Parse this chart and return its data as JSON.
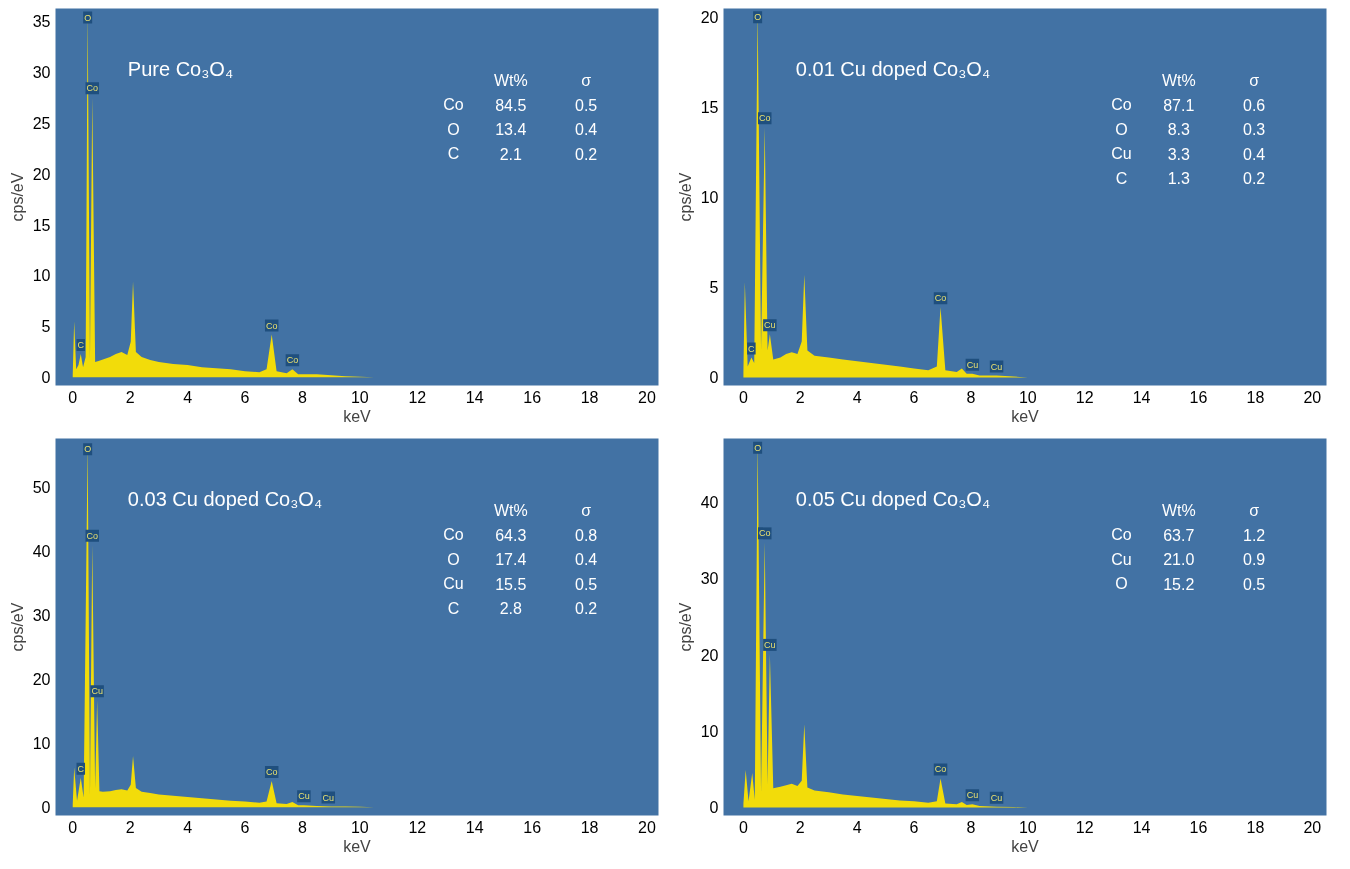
{
  "chart_data": [
    {
      "type": "area",
      "title": "Pure Co₃O₄",
      "xlabel": "keV",
      "ylabel": "cps/eV",
      "color": "#f2dc0a",
      "x": [
        0,
        0.05,
        0.12,
        0.2,
        0.28,
        0.36,
        0.45,
        0.52,
        0.6,
        0.68,
        0.78,
        0.9,
        1.1,
        1.3,
        1.5,
        1.7,
        1.9,
        2.02,
        2.1,
        2.2,
        2.4,
        2.7,
        3,
        3.5,
        4,
        4.5,
        5,
        5.5,
        6,
        6.5,
        6.75,
        6.93,
        7.1,
        7.45,
        7.65,
        7.85,
        8.5,
        9,
        9.5,
        10,
        10.5,
        12,
        14,
        16,
        18,
        20
      ],
      "values": [
        0.3,
        5.5,
        0.8,
        1.2,
        2.3,
        1.0,
        2.0,
        36,
        1.8,
        27.5,
        1.5,
        1.6,
        1.8,
        2.0,
        2.3,
        2.5,
        2.2,
        3.5,
        9.4,
        2.5,
        2.0,
        1.7,
        1.5,
        1.3,
        1.2,
        1.0,
        0.9,
        0.8,
        0.6,
        0.5,
        0.8,
        4.2,
        0.6,
        0.4,
        0.8,
        0.3,
        0.3,
        0.2,
        0.1,
        0.05,
        0,
        0,
        0,
        0,
        0,
        0
      ],
      "xlim": [
        -0.6,
        20.4
      ],
      "ylim": [
        -0.8,
        36.2
      ],
      "xticks": [
        0,
        2,
        4,
        6,
        8,
        10,
        12,
        14,
        16,
        18,
        20
      ],
      "yticks": [
        0,
        5,
        10,
        15,
        20,
        25,
        30,
        35
      ],
      "annotations": [
        {
          "text": "O",
          "x": 0.52,
          "y": 36
        },
        {
          "text": "Co",
          "x": 0.68,
          "y": 27.5
        },
        {
          "text": "C",
          "x": 0.28,
          "y": 2.3
        },
        {
          "text": "Co",
          "x": 6.93,
          "y": 4.2
        },
        {
          "text": "Co",
          "x": 7.65,
          "y": 0.8
        },
        "Wt% σ",
        "Co 84.5 0.5",
        "O 13.4 0.4",
        "C 2.1 0.2"
      ]
    },
    {
      "type": "area",
      "title": "0.01 Cu doped Co₃O₄",
      "xlabel": "keV",
      "ylabel": "cps/eV",
      "color": "#f2dc0a",
      "x": [
        0,
        0.05,
        0.15,
        0.28,
        0.38,
        0.5,
        0.62,
        0.75,
        0.85,
        0.93,
        1.05,
        1.3,
        1.5,
        1.7,
        1.9,
        2.05,
        2.14,
        2.25,
        2.5,
        3,
        3.5,
        4,
        4.5,
        5,
        5.5,
        6,
        6.5,
        6.8,
        6.93,
        7.1,
        7.5,
        7.68,
        7.85,
        8.05,
        8.3,
        8.9,
        9.5,
        10,
        12,
        14,
        16,
        18,
        20
      ],
      "values": [
        0.3,
        5.3,
        0.6,
        1.1,
        0.8,
        20.4,
        1.5,
        13.9,
        1.5,
        2.4,
        1.0,
        1.1,
        1.3,
        1.4,
        1.3,
        2.0,
        5.7,
        1.5,
        1.2,
        1.1,
        1.0,
        0.9,
        0.8,
        0.7,
        0.6,
        0.5,
        0.4,
        0.6,
        3.9,
        0.4,
        0.3,
        0.5,
        0.2,
        0.2,
        0.1,
        0.1,
        0.05,
        0,
        0,
        0,
        0,
        0,
        0
      ],
      "xlim": [
        -0.7,
        20.5
      ],
      "ylim": [
        -0.45,
        20.5
      ],
      "xticks": [
        0,
        2,
        4,
        6,
        8,
        10,
        12,
        14,
        16,
        18,
        20
      ],
      "yticks": [
        0,
        5,
        10,
        15,
        20
      ],
      "annotations": [
        {
          "text": "O",
          "x": 0.5,
          "y": 20.4
        },
        {
          "text": "Co",
          "x": 0.75,
          "y": 13.9
        },
        {
          "text": "C",
          "x": 0.28,
          "y": 1.1
        },
        {
          "text": "Cu",
          "x": 0.93,
          "y": 2.4
        },
        {
          "text": "Co",
          "x": 6.93,
          "y": 3.9
        },
        {
          "text": "Cu",
          "x": 8.05,
          "y": 0.2
        },
        {
          "text": "Cu",
          "x": 8.9,
          "y": 0.1
        },
        "Wt% σ",
        "Co 87.1 0.6",
        "O 8.3 0.3",
        "Cu 3.3 0.4",
        "C 1.3 0.2"
      ]
    },
    {
      "type": "area",
      "title": "0.03 Cu doped Co₃O₄",
      "xlabel": "keV",
      "ylabel": "cps/eV",
      "color": "#f2dc0a",
      "x": [
        0,
        0.05,
        0.15,
        0.28,
        0.38,
        0.52,
        0.6,
        0.68,
        0.78,
        0.85,
        0.93,
        1.05,
        1.3,
        1.5,
        1.7,
        1.9,
        2.02,
        2.1,
        2.2,
        2.4,
        2.7,
        3,
        3.5,
        4,
        4.5,
        5,
        5.5,
        6,
        6.5,
        6.75,
        6.93,
        7.1,
        7.45,
        7.65,
        7.85,
        8.05,
        8.5,
        9,
        9.5,
        10,
        10.5,
        12,
        14,
        16,
        18,
        20
      ],
      "values": [
        0.5,
        6.2,
        1.0,
        4.6,
        1.5,
        57,
        2.0,
        41,
        3.0,
        16.7,
        2.5,
        2.4,
        2.5,
        2.7,
        2.8,
        2.6,
        3.5,
        8.0,
        3.0,
        2.4,
        2.2,
        2.0,
        1.8,
        1.6,
        1.4,
        1.2,
        1.0,
        0.9,
        0.7,
        0.9,
        4.1,
        0.6,
        0.5,
        0.8,
        0.3,
        0.3,
        0.2,
        0.1,
        0.1,
        0.05,
        0,
        0,
        0,
        0,
        0,
        0
      ],
      "xlim": [
        -0.6,
        20.4
      ],
      "ylim": [
        -1.3,
        57.6
      ],
      "xticks": [
        0,
        2,
        4,
        6,
        8,
        10,
        12,
        14,
        16,
        18,
        20
      ],
      "yticks": [
        0,
        10,
        20,
        30,
        40,
        50
      ],
      "annotations": [
        {
          "text": "O",
          "x": 0.52,
          "y": 57
        },
        {
          "text": "Co",
          "x": 0.68,
          "y": 41
        },
        {
          "text": "C",
          "x": 0.28,
          "y": 4.6
        },
        {
          "text": "Cu",
          "x": 0.85,
          "y": 16.7
        },
        {
          "text": "Co",
          "x": 6.93,
          "y": 4.1
        },
        {
          "text": "Cu",
          "x": 8.05,
          "y": 0.3
        },
        {
          "text": "Cu",
          "x": 8.9,
          "y": 0.1
        },
        "Wt% σ",
        "Co 64.3 0.8",
        "O 17.4 0.4",
        "Cu 15.5 0.5",
        "C 2.8 0.2"
      ]
    },
    {
      "type": "area",
      "title": "0.05 Cu doped Co₃O₄",
      "xlabel": "keV",
      "ylabel": "cps/eV",
      "color": "#f2dc0a",
      "x": [
        0,
        0.08,
        0.18,
        0.31,
        0.4,
        0.5,
        0.62,
        0.75,
        0.85,
        0.93,
        1.05,
        1.3,
        1.5,
        1.7,
        1.9,
        2.05,
        2.14,
        2.25,
        2.5,
        3,
        3.5,
        4,
        4.5,
        5,
        5.5,
        6,
        6.5,
        6.8,
        6.93,
        7.1,
        7.5,
        7.68,
        7.85,
        8.05,
        8.3,
        8.9,
        9.5,
        10,
        12,
        14,
        16,
        18,
        20
      ],
      "values": [
        0.5,
        4.9,
        0.8,
        4.5,
        1.0,
        48,
        2.0,
        34.7,
        3.0,
        20.1,
        2.5,
        2.7,
        2.9,
        3.1,
        2.8,
        3.5,
        10.9,
        2.6,
        2.2,
        2.0,
        1.7,
        1.5,
        1.3,
        1.1,
        0.9,
        0.8,
        0.6,
        0.8,
        3.8,
        0.5,
        0.4,
        0.7,
        0.3,
        0.4,
        0.2,
        0.1,
        0.05,
        0,
        0,
        0,
        0,
        0,
        0
      ],
      "xlim": [
        -0.7,
        20.5
      ],
      "ylim": [
        -1.06,
        48.3
      ],
      "xticks": [
        0,
        2,
        4,
        6,
        8,
        10,
        12,
        14,
        16,
        18,
        20
      ],
      "yticks": [
        0,
        10,
        20,
        30,
        40
      ],
      "annotations": [
        {
          "text": "O",
          "x": 0.5,
          "y": 48
        },
        {
          "text": "Co",
          "x": 0.75,
          "y": 34.7
        },
        {
          "text": "Cu",
          "x": 0.93,
          "y": 20.1
        },
        {
          "text": "Co",
          "x": 6.93,
          "y": 3.8
        },
        {
          "text": "Cu",
          "x": 8.05,
          "y": 0.4
        },
        {
          "text": "Cu",
          "x": 8.9,
          "y": 0.1
        },
        "Wt% σ",
        "Co 63.7 1.2",
        "Cu 21.0 0.9",
        "O 15.2 0.5"
      ]
    }
  ]
}
